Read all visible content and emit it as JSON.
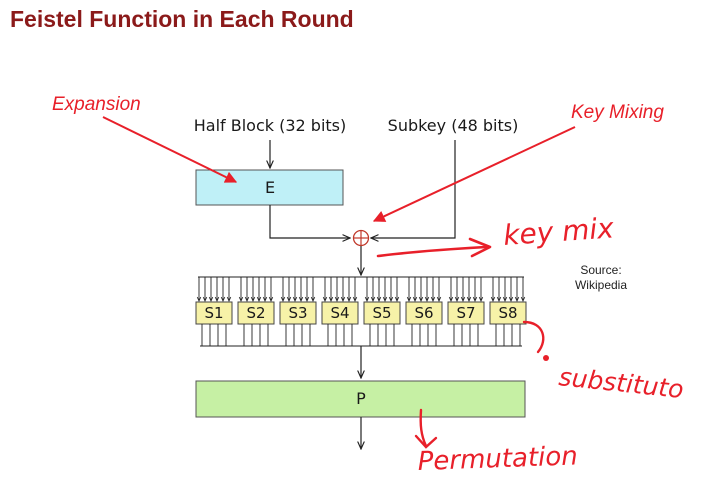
{
  "title": "Feistel Function in Each Round",
  "labels": {
    "half_block": "Half Block (32 bits)",
    "subkey": "Subkey (48 bits)",
    "expansion_box": "E",
    "permutation_box": "P"
  },
  "sboxes": [
    "S1",
    "S2",
    "S3",
    "S4",
    "S5",
    "S6",
    "S7",
    "S8"
  ],
  "annotations": {
    "expansion": "Expansion",
    "key_mixing": "Key Mixing"
  },
  "source": {
    "line1": "Source:",
    "line2": "Wikipedia"
  },
  "handwriting": {
    "key_mix": "key mix",
    "substitution": "substituto",
    "permutation": "Permutation"
  },
  "colors": {
    "title": "#8b1a1a",
    "annotation_red": "#e8202a",
    "e_box_fill": "#bff0f7",
    "p_box_fill": "#c6f0a4",
    "sbox_fill": "#f7f2a8"
  }
}
